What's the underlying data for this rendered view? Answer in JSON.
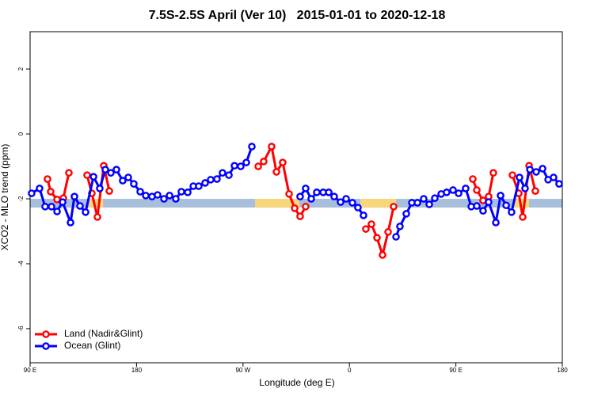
{
  "chart_data": {
    "type": "line",
    "title": "7.5S-2.5S April (Ver 10)   2015-01-01 to 2020-12-18",
    "x_label": "Longitude (deg E)",
    "y_label": "XCO2 - MLO trend (ppm)",
    "xlim": [
      90,
      540
    ],
    "ylim": [
      -7.05,
      3.15
    ],
    "xticks": [
      {
        "value": 90,
        "label": "90 E"
      },
      {
        "value": 180,
        "label": "180"
      },
      {
        "value": 270,
        "label": "90 W"
      },
      {
        "value": 360,
        "label": "0"
      },
      {
        "value": 450,
        "label": "90 E"
      },
      {
        "value": 540,
        "label": "180"
      }
    ],
    "yticks": [
      -6,
      -4,
      -2,
      0,
      2
    ],
    "legend": "bottom-left",
    "band": {
      "ylim": [
        -2.27,
        -2.0
      ],
      "color": "#a8bfdc",
      "land_color": "#f7d77a",
      "land_ranges": [
        [
          139.6,
          151.7
        ],
        [
          280.2,
          317.7
        ],
        [
          369.2,
          399.4
        ],
        [
          498.5,
          511.9
        ]
      ]
    },
    "series": [
      {
        "name": "Land (Nadir&Glint)",
        "color": "#ff0000",
        "x": [
          104.7,
          107.4,
          112.8,
          118.1,
          122.8,
          null,
          138.2,
          142.2,
          146.9,
          152.3,
          157.0,
          null,
          282.9,
          287.5,
          294.2,
          298.3,
          303.6,
          309.0,
          313.7,
          318.3,
          323.0,
          null,
          373.9,
          378.6,
          383.3,
          388.0,
          392.7,
          397.4,
          null,
          464.3,
          467.7,
          473.0,
          477.7,
          481.7,
          null,
          497.8,
          503.2,
          506.5,
          511.9,
          517.2
        ],
        "values": [
          -1.39,
          -1.78,
          -2.02,
          -1.98,
          -1.2,
          null,
          -1.27,
          -1.83,
          -2.56,
          -0.98,
          -1.76,
          null,
          -1.0,
          -0.85,
          -0.39,
          -1.17,
          -0.88,
          -1.85,
          -2.29,
          -2.54,
          -2.24,
          null,
          -2.93,
          -2.78,
          -3.2,
          -3.73,
          -3.02,
          -2.24,
          null,
          -1.39,
          -1.73,
          -2.05,
          -1.93,
          -1.2,
          null,
          -1.27,
          -1.83,
          -2.56,
          -0.98,
          -1.76
        ]
      },
      {
        "name": "Ocean (Glint)",
        "color": "#0000ff",
        "x": [
          91.3,
          98.0,
          102.7,
          108.1,
          112.8,
          117.5,
          124.2,
          127.5,
          132.2,
          136.9,
          143.6,
          148.9,
          153.6,
          158.3,
          163.0,
          168.3,
          173.0,
          177.7,
          183.1,
          187.8,
          193.1,
          197.8,
          203.2,
          207.9,
          213.2,
          217.9,
          223.3,
          228.0,
          232.6,
          238.0,
          242.7,
          248.0,
          252.7,
          258.1,
          262.8,
          268.1,
          272.8,
          277.5,
          null,
          318.3,
          323.0,
          327.7,
          332.4,
          337.8,
          342.5,
          347.1,
          352.5,
          357.2,
          362.5,
          367.2,
          371.9,
          null,
          399.4,
          402.7,
          408.1,
          412.8,
          417.5,
          422.8,
          427.5,
          432.2,
          437.6,
          442.2,
          447.6,
          452.3,
          458.3,
          463.0,
          467.7,
          473.0,
          477.7,
          483.8,
          487.8,
          492.5,
          497.1,
          503.8,
          508.5,
          512.6,
          517.9,
          523.3,
          528.0,
          532.6,
          537.3
        ],
        "values": [
          -1.83,
          -1.68,
          -2.24,
          -2.24,
          -2.39,
          -2.1,
          -2.73,
          -1.93,
          -2.22,
          -2.41,
          -1.32,
          -1.68,
          -1.1,
          -1.2,
          -1.1,
          -1.44,
          -1.34,
          -1.54,
          -1.78,
          -1.9,
          -1.93,
          -1.88,
          -2.0,
          -1.9,
          -2.0,
          -1.78,
          -1.8,
          -1.61,
          -1.61,
          -1.51,
          -1.41,
          -1.39,
          -1.2,
          -1.27,
          -0.98,
          -1.0,
          -0.88,
          -0.39,
          null,
          -1.93,
          -1.68,
          -2.0,
          -1.8,
          -1.8,
          -1.8,
          -1.93,
          -2.1,
          -2.0,
          -2.12,
          -2.27,
          -2.51,
          null,
          -3.17,
          -2.85,
          -2.46,
          -2.12,
          -2.12,
          -2.0,
          -2.17,
          -1.98,
          -1.85,
          -1.8,
          -1.73,
          -1.83,
          -1.68,
          -2.24,
          -2.22,
          -2.37,
          -2.1,
          -2.73,
          -1.9,
          -2.2,
          -2.41,
          -1.34,
          -1.68,
          -1.1,
          -1.17,
          -1.07,
          -1.41,
          -1.34,
          -1.54
        ]
      }
    ]
  }
}
